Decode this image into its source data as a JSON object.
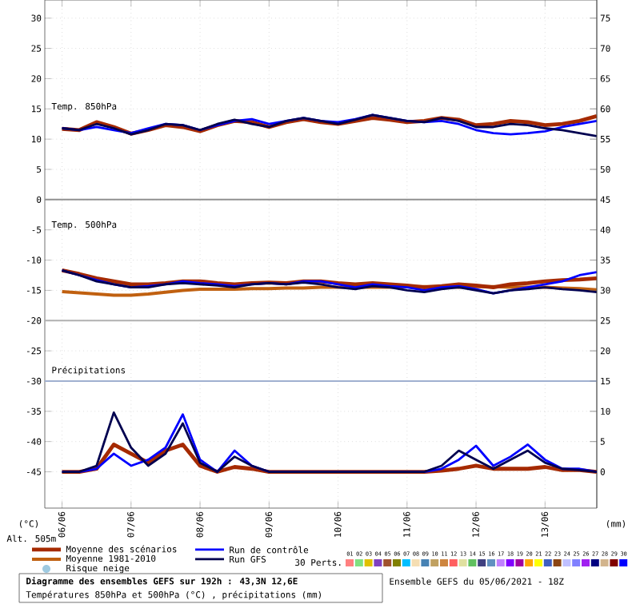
{
  "chart_data": {
    "type": "line",
    "title": "Diagramme des ensembles GEFS sur 192h : 43,3N 12,6E",
    "subtitle": "Températures 850hPa et 500hPa (°C) , précipitations (mm)",
    "ylabel": "(°C)",
    "y2label": "(mm)",
    "annotations": [
      "Temp. 850hPa",
      "Temp. 500hPa",
      "Précipitations",
      "Alt. 505m",
      "Ensemble GEFS du 05/06/2021 - 18Z",
      "30 Perts.",
      "Risque neige",
      "01",
      "02",
      "03",
      "04",
      "05",
      "06",
      "07",
      "08",
      "09",
      "10",
      "11",
      "12",
      "13",
      "14",
      "15",
      "16",
      "17",
      "18",
      "19",
      "20",
      "21",
      "22",
      "23",
      "24",
      "25",
      "26",
      "27",
      "28",
      "29",
      "30"
    ],
    "x": [
      "2021-06-06T00:00",
      "2021-06-06T06:00",
      "2021-06-06T12:00",
      "2021-06-06T18:00",
      "2021-06-07T00:00",
      "2021-06-07T06:00",
      "2021-06-07T12:00",
      "2021-06-07T18:00",
      "2021-06-08T00:00",
      "2021-06-08T06:00",
      "2021-06-08T12:00",
      "2021-06-08T18:00",
      "2021-06-09T00:00",
      "2021-06-09T06:00",
      "2021-06-09T12:00",
      "2021-06-09T18:00",
      "2021-06-10T00:00",
      "2021-06-10T06:00",
      "2021-06-10T12:00",
      "2021-06-10T18:00",
      "2021-06-11T00:00",
      "2021-06-11T06:00",
      "2021-06-11T12:00",
      "2021-06-11T18:00",
      "2021-06-12T00:00",
      "2021-06-12T06:00",
      "2021-06-12T12:00",
      "2021-06-12T18:00",
      "2021-06-13T00:00",
      "2021-06-13T06:00",
      "2021-06-13T12:00",
      "2021-06-13T18:00"
    ],
    "xlim": [
      "2021-06-05T18:00",
      "2021-06-13T18:00"
    ],
    "xticks": [
      {
        "value": "2021-06-06T00:00",
        "label": "06/06"
      },
      {
        "value": "2021-06-07T00:00",
        "label": "07/06"
      },
      {
        "value": "2021-06-08T00:00",
        "label": "08/06"
      },
      {
        "value": "2021-06-09T00:00",
        "label": "09/06"
      },
      {
        "value": "2021-06-10T00:00",
        "label": "10/06"
      },
      {
        "value": "2021-06-11T00:00",
        "label": "11/06"
      },
      {
        "value": "2021-06-12T00:00",
        "label": "12/06"
      },
      {
        "value": "2021-06-13T00:00",
        "label": "13/06"
      }
    ],
    "ylim": [
      -51,
      33
    ],
    "yticks": [
      -45,
      -40,
      -35,
      -30,
      -25,
      -20,
      -15,
      -10,
      -5,
      0,
      5,
      10,
      15,
      20,
      25,
      30
    ],
    "y2lim": [
      -6,
      78
    ],
    "y2ticks": [
      0,
      5,
      10,
      15,
      20,
      25,
      30,
      35,
      40,
      45,
      50,
      55,
      60,
      65,
      70,
      75
    ],
    "grid": true,
    "legend": "bottom",
    "ref_lines": [
      {
        "axis": "y",
        "value": 0,
        "color": "#909090"
      },
      {
        "axis": "y",
        "value": -20,
        "color": "#b0b0b0"
      },
      {
        "axis": "y",
        "value": -30,
        "color": "#a0b0d0"
      }
    ],
    "series": [
      {
        "name": "Moyenne des scénarios",
        "color": "#a52a00",
        "values": [
          11.7,
          11.5,
          12.8,
          12,
          10.9,
          11.5,
          12.3,
          12,
          11.3,
          12.3,
          13,
          12.8,
          12,
          12.8,
          13.3,
          12.8,
          12.5,
          13,
          13.5,
          13.2,
          12.8,
          13,
          13.5,
          13.2,
          12.3,
          12.5,
          13,
          12.8,
          12.3,
          12.5,
          13,
          13.8
        ]
      },
      {
        "name": "Run de contrôle",
        "color": "#0000ff",
        "values": [
          11.8,
          11.5,
          12,
          11.5,
          11,
          11.8,
          12.5,
          12.3,
          11.5,
          12.3,
          13,
          13.3,
          12.5,
          13,
          13.5,
          13,
          12.8,
          13.3,
          14,
          13.5,
          13,
          12.8,
          13,
          12.5,
          11.5,
          11,
          10.8,
          11,
          11.3,
          12,
          12.5,
          13
        ]
      },
      {
        "name": "Run GFS",
        "color": "#000050",
        "values": [
          11.8,
          11.5,
          12.5,
          11.8,
          10.8,
          11.5,
          12.5,
          12.3,
          11.5,
          12.5,
          13.2,
          12.5,
          12,
          13,
          13.5,
          13,
          12.5,
          13.2,
          14,
          13.5,
          13,
          12.8,
          13.5,
          13,
          12,
          12,
          12.5,
          12.3,
          11.8,
          11.5,
          11,
          10.5
        ]
      },
      {
        "name": "Moyenne 1981-2010",
        "color": "#c06010",
        "values": [
          -15.2,
          -15.4,
          -15.6,
          -15.8,
          -15.8,
          -15.6,
          -15.3,
          -15,
          -14.8,
          -14.8,
          -14.8,
          -14.7,
          -14.7,
          -14.6,
          -14.6,
          -14.5,
          -14.5,
          -14.5,
          -14.5,
          -14.5,
          -14.4,
          -14.4,
          -14.4,
          -14.5,
          -14.4,
          -14.4,
          -14.5,
          -14.5,
          -14.5,
          -14.6,
          -14.7,
          -14.9
        ]
      },
      {
        "color": "#a52a00",
        "values": [
          -11.7,
          -12.3,
          -13,
          -13.5,
          -14,
          -14,
          -13.8,
          -13.5,
          -13.5,
          -13.8,
          -14,
          -13.8,
          -13.7,
          -13.8,
          -13.5,
          -13.5,
          -13.8,
          -14,
          -13.8,
          -14,
          -14.2,
          -14.5,
          -14.3,
          -14,
          -14.2,
          -14.5,
          -14,
          -13.8,
          -13.5,
          -13.3,
          -13.2,
          -13
        ]
      },
      {
        "color": "#0000ff",
        "values": [
          -11.7,
          -12.5,
          -13.3,
          -14,
          -14.5,
          -14.3,
          -14,
          -13.5,
          -13.8,
          -14,
          -14.3,
          -14,
          -13.8,
          -14,
          -13.5,
          -13.5,
          -14,
          -14.5,
          -14,
          -14.3,
          -14.5,
          -15,
          -14.5,
          -14.3,
          -14.8,
          -15.5,
          -15,
          -14.5,
          -14,
          -13.5,
          -12.5,
          -12
        ]
      },
      {
        "color": "#000050",
        "values": [
          -11.7,
          -12.5,
          -13.5,
          -14,
          -14.5,
          -14.5,
          -14,
          -13.8,
          -14,
          -14.2,
          -14.5,
          -14,
          -13.8,
          -14,
          -13.7,
          -14,
          -14.5,
          -14.8,
          -14.3,
          -14.5,
          -15,
          -15.3,
          -14.8,
          -14.5,
          -15,
          -15.5,
          -15,
          -14.8,
          -14.5,
          -14.8,
          -15,
          -15.3
        ]
      },
      {
        "color": "#a52a00",
        "axis": "y2",
        "values": [
          0,
          0,
          0.5,
          4.5,
          3,
          1.5,
          3.5,
          4.5,
          1,
          0,
          0.8,
          0.5,
          0,
          0,
          0,
          0,
          0,
          0,
          0,
          0,
          0,
          0,
          0.2,
          0.5,
          1,
          0.5,
          0.5,
          0.5,
          0.8,
          0.3,
          0.3,
          0
        ]
      },
      {
        "color": "#0000ff",
        "axis": "y2",
        "values": [
          0,
          0,
          0.5,
          3,
          1,
          2,
          4,
          9.5,
          2,
          0,
          3.5,
          1,
          0,
          0,
          0,
          0,
          0,
          0,
          0,
          0,
          0,
          0,
          0.5,
          2,
          4.3,
          1,
          2.5,
          4.5,
          2,
          0.5,
          0.5,
          0
        ]
      },
      {
        "color": "#000050",
        "axis": "y2",
        "values": [
          0,
          0,
          1,
          9.8,
          4,
          1,
          3,
          8,
          1.5,
          0,
          2.5,
          1,
          0,
          0,
          0,
          0,
          0,
          0,
          0,
          0,
          0,
          0,
          1,
          3.5,
          2,
          0.5,
          2,
          3.5,
          1.5,
          0.5,
          0.3,
          0
        ]
      }
    ]
  }
}
